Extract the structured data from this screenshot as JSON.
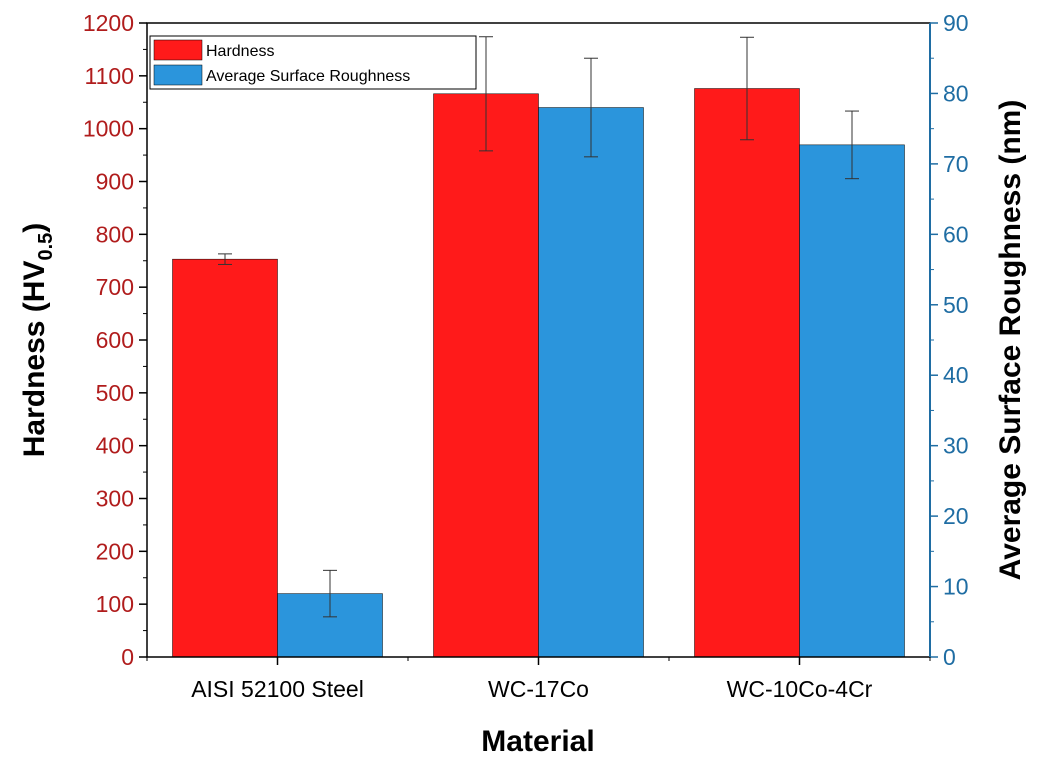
{
  "chart_data": {
    "type": "bar",
    "categories": [
      "AISI 52100 Steel",
      "WC-17Co",
      "WC-10Co-4Cr"
    ],
    "xlabel": "Material",
    "ylabel_left": {
      "main": "Hardness (HV",
      "sub": "0.5",
      "end": ")"
    },
    "ylabel_right": "Average Surface Roughness (nm)",
    "ylim_left": [
      0,
      1200
    ],
    "ylim_right": [
      0,
      90
    ],
    "yticks_left": [
      "0",
      "100",
      "200",
      "300",
      "400",
      "500",
      "600",
      "700",
      "800",
      "900",
      "1000",
      "1100",
      "1200"
    ],
    "yticks_right": [
      "0",
      "10",
      "20",
      "30",
      "40",
      "50",
      "60",
      "70",
      "80",
      "90"
    ],
    "series": [
      {
        "name": "Hardness",
        "axis": "left",
        "color": "#ff1a1a",
        "values": [
          753,
          1066,
          1076
        ],
        "errors": [
          10,
          108,
          97
        ]
      },
      {
        "name": "Average Surface Roughness",
        "axis": "right",
        "color": "#2b95dc",
        "values": [
          9.0,
          78.0,
          72.7
        ],
        "errors": [
          3.3,
          7.0,
          4.8
        ]
      }
    ],
    "legend_position": "top-left",
    "left_axis_color": "#b01c1c",
    "right_axis_color": "#1f6da3"
  }
}
